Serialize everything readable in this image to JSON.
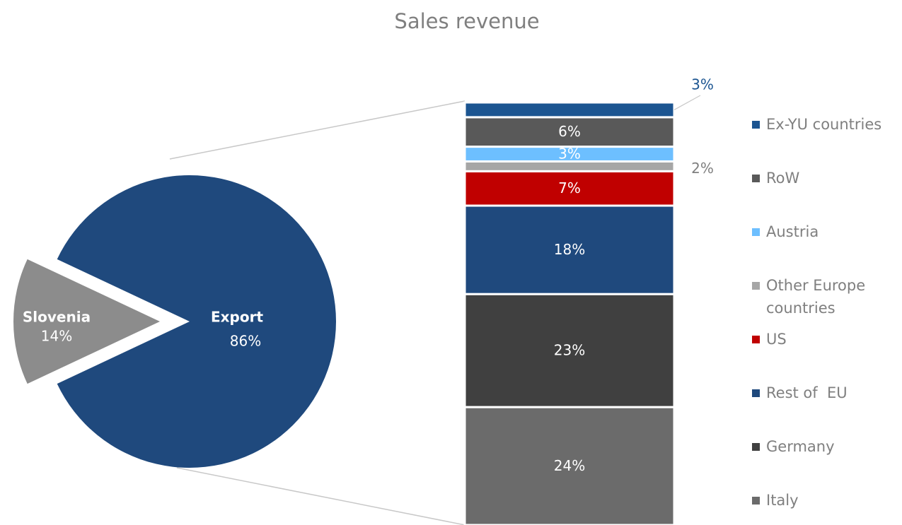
{
  "chart_data": {
    "type": "bar-of-pie",
    "title": "Sales revenue",
    "pie": {
      "categories": [
        "Slovenia",
        "Export"
      ],
      "values": [
        14,
        86
      ],
      "value_labels": [
        "14%",
        "86%"
      ],
      "colors": [
        "#8c8c8c",
        "#1f497d"
      ]
    },
    "series": [
      {
        "name": "Italy",
        "color": "#6b6b6b",
        "values": [
          24
        ],
        "value_labels": [
          "24%"
        ]
      },
      {
        "name": "Germany",
        "color": "#404040",
        "values": [
          23
        ],
        "value_labels": [
          "23%"
        ]
      },
      {
        "name": "Rest of  EU",
        "color": "#1f497d",
        "values": [
          18
        ],
        "value_labels": [
          "18%"
        ]
      },
      {
        "name": "US",
        "color": "#c00000",
        "values": [
          7
        ],
        "value_labels": [
          "7%"
        ]
      },
      {
        "name": "Other Europe countries",
        "color": "#a6a6a6",
        "values": [
          2
        ],
        "value_labels": [
          "2%"
        ]
      },
      {
        "name": "Austria",
        "color": "#6dbfff",
        "values": [
          3
        ],
        "value_labels": [
          "3%"
        ]
      },
      {
        "name": "RoW",
        "color": "#595959",
        "values": [
          6
        ],
        "value_labels": [
          "6%"
        ]
      },
      {
        "name": "Ex-YU countries",
        "color": "#1c5591",
        "values": [
          3
        ],
        "value_labels": [
          "3%"
        ]
      }
    ],
    "legend": "right"
  }
}
